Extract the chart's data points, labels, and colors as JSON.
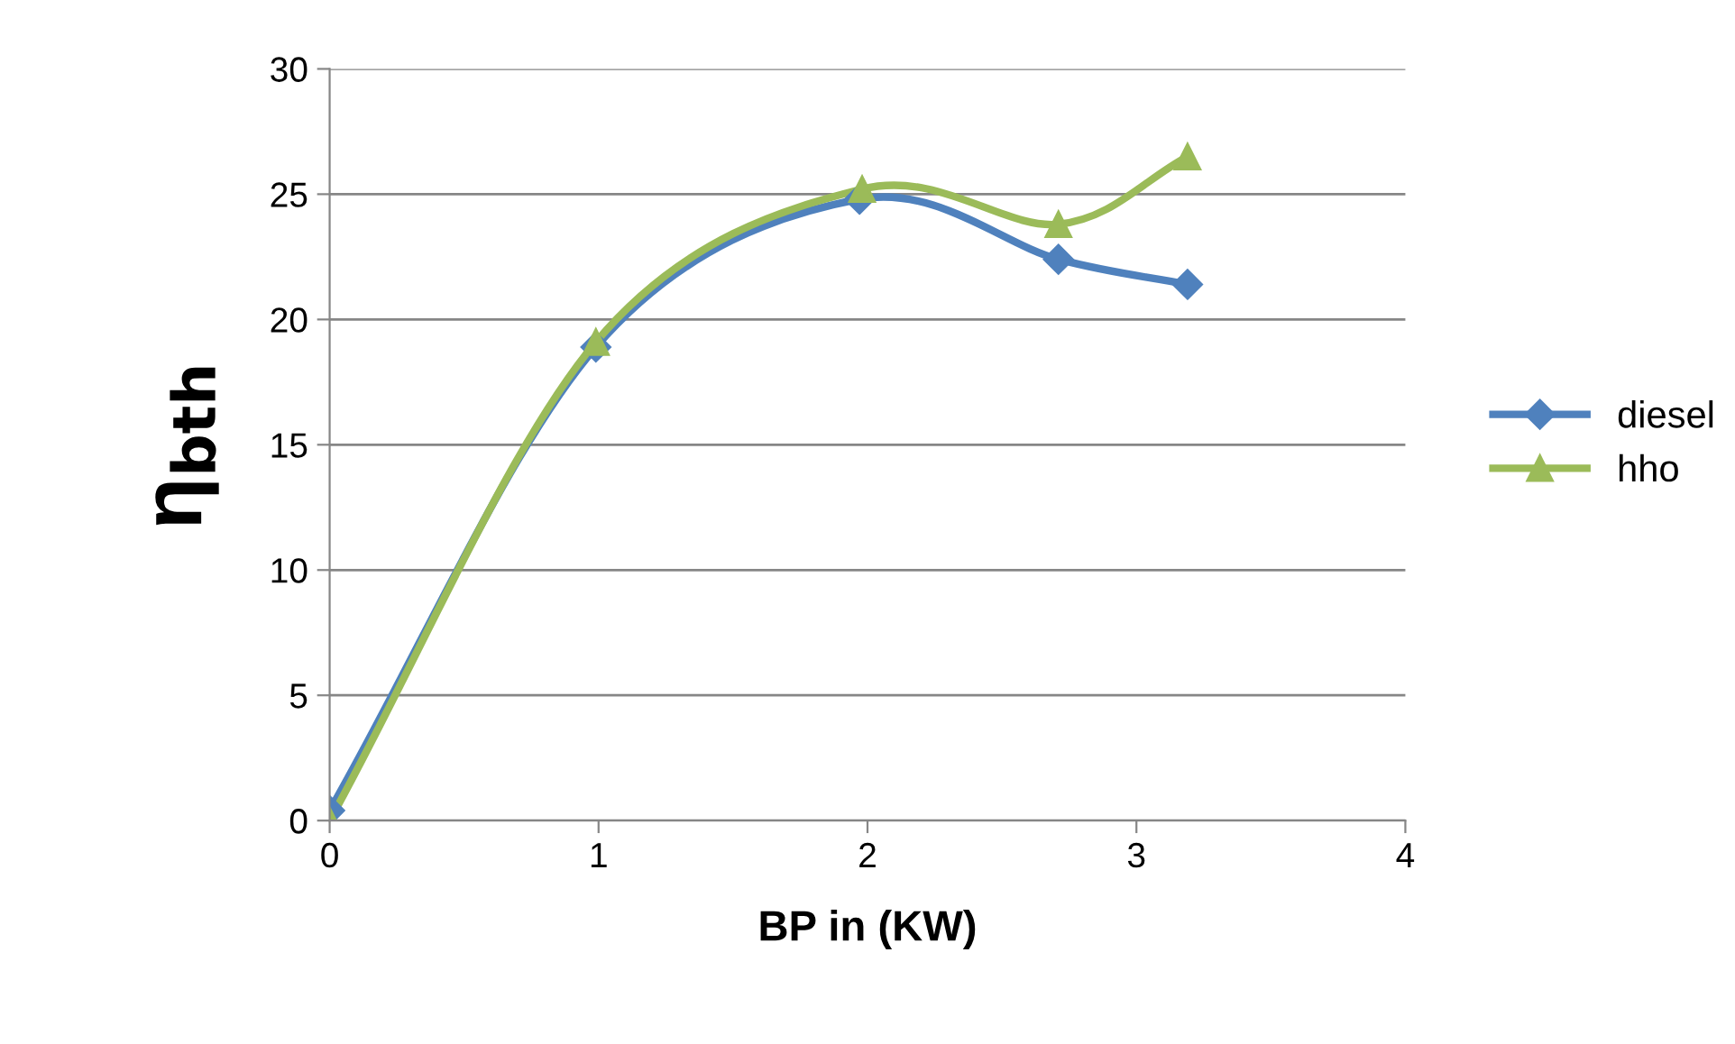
{
  "chart_data": {
    "type": "line",
    "xlabel": "BP in (KW)",
    "ylabel": "η$_{bth}$",
    "xlim": [
      0,
      4
    ],
    "xticks": [
      0,
      1,
      2,
      3,
      4
    ],
    "ylim": [
      0,
      30
    ],
    "yticks": [
      0,
      5,
      10,
      15,
      20,
      25,
      30
    ],
    "grid": "y",
    "legend": "right",
    "line_style": "solid",
    "series": [
      {
        "name": "diesel",
        "color": "#4f81bd",
        "marker": "diamond",
        "x": [
          0,
          0.99,
          1.97,
          2.71,
          3.19
        ],
        "values": [
          0.4,
          18.9,
          24.8,
          22.4,
          21.4
        ]
      },
      {
        "name": "hho",
        "color": "#9bbb59",
        "marker": "triangle",
        "x": [
          0,
          0.99,
          1.98,
          2.71,
          3.19
        ],
        "values": [
          0,
          19.1,
          25.2,
          23.8,
          26.5
        ]
      }
    ]
  }
}
